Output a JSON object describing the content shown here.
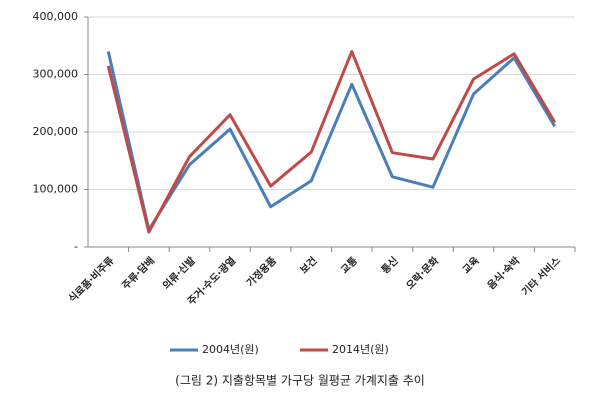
{
  "chart_data": {
    "type": "line",
    "title": "(그림 2) 지출항목별 가구당 월평균 가계지출 추이",
    "categories": [
      "식료품·비주류",
      "주류·담배",
      "의류·신발",
      "주거·수도·광열",
      "가정용품",
      "보건",
      "교통",
      "통신",
      "오락·문화",
      "교육",
      "음식·숙박",
      "기타 서비스"
    ],
    "series": [
      {
        "name": "2004년(원)",
        "color": "#4a7ebb",
        "values": [
          340000,
          30000,
          143000,
          205000,
          70000,
          115000,
          283000,
          122000,
          104000,
          266000,
          329000,
          210000
        ]
      },
      {
        "name": "2014년(원)",
        "color": "#be4b48",
        "values": [
          315000,
          26000,
          157000,
          230000,
          106000,
          165000,
          340000,
          164000,
          153000,
          292000,
          336000,
          217000
        ]
      }
    ],
    "ylim": [
      0,
      400000
    ],
    "yticks": [
      {
        "value": 0,
        "label": "-"
      },
      {
        "value": 100000,
        "label": "100,000"
      },
      {
        "value": 200000,
        "label": "200,000"
      },
      {
        "value": 300000,
        "label": "300,000"
      },
      {
        "value": 400000,
        "label": "400,000"
      }
    ],
    "grid": true,
    "legend": "bottom"
  }
}
